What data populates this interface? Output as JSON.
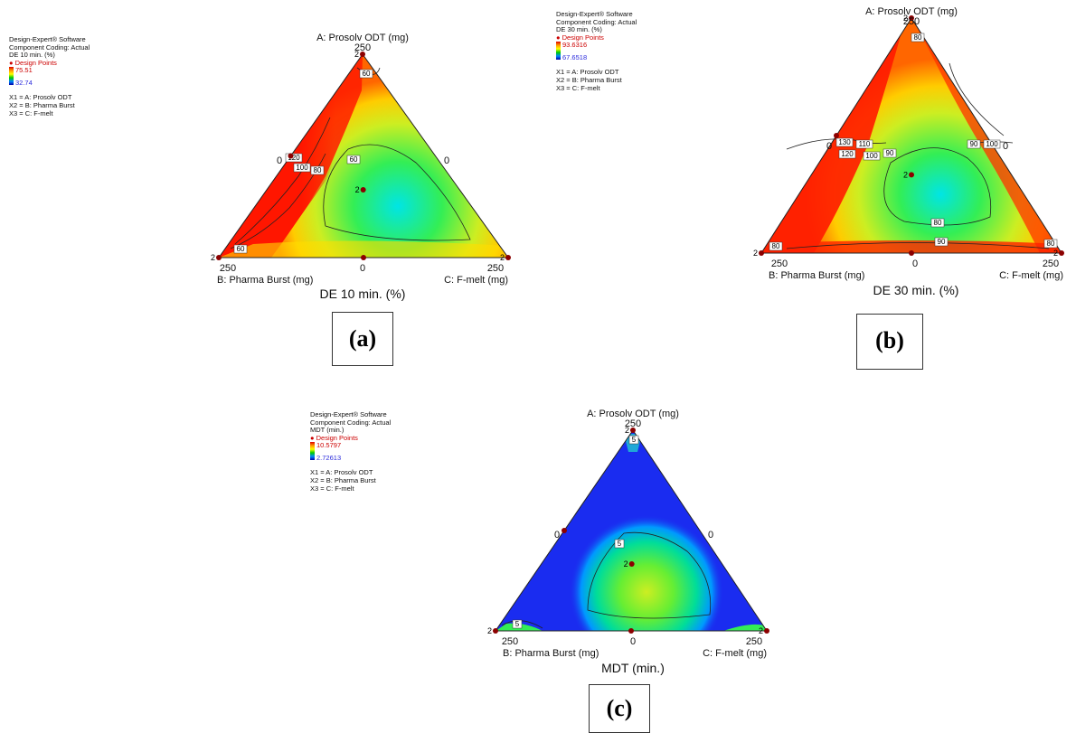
{
  "panels": [
    {
      "id": "a",
      "info": {
        "software": "Design-Expert® Software",
        "coding": "Component Coding: Actual",
        "response": "DE 10 min. (%)",
        "points_label": "Design Points",
        "high": "75.51",
        "low": "32.74",
        "x1": "X1 = A: Prosolv ODT",
        "x2": "X2 = B: Pharma Burst",
        "x3": "X3 = C: F-melt"
      },
      "apex_label": "A: Prosolv ODT (mg)",
      "apex_value": "250",
      "left_label": "B: Pharma Burst (mg)",
      "right_label": "C: F-melt (mg)",
      "left_value": "250",
      "right_value": "250",
      "mid_zero": "0",
      "left_zero": "0",
      "right_zero": "0",
      "title": "DE 10 min. (%)",
      "panel_label": "(a)",
      "contour_labels": [
        "60",
        "120",
        "100",
        "80",
        "60",
        "60"
      ]
    },
    {
      "id": "b",
      "info": {
        "software": "Design-Expert® Software",
        "coding": "Component Coding: Actual",
        "response": "DE 30 min. (%)",
        "points_label": "Design Points",
        "high": "93.6316",
        "low": "67.6518",
        "x1": "X1 = A: Prosolv ODT",
        "x2": "X2 = B: Pharma Burst",
        "x3": "X3 = C: F-melt"
      },
      "apex_label": "A: Prosolv ODT (mg)",
      "apex_value": "250",
      "left_label": "B: Pharma Burst (mg)",
      "right_label": "C: F-melt (mg)",
      "left_value": "250",
      "right_value": "250",
      "mid_zero": "0",
      "left_zero": "0",
      "right_zero": "0",
      "title": "DE 30 min. (%)",
      "panel_label": "(b)",
      "contour_labels": [
        "80",
        "130",
        "110",
        "120",
        "100",
        "90",
        "90",
        "100",
        "80",
        "90",
        "80",
        "80"
      ]
    },
    {
      "id": "c",
      "info": {
        "software": "Design-Expert® Software",
        "coding": "Component Coding: Actual",
        "response": "MDT (min.)",
        "points_label": "Design Points",
        "high": "10.5797",
        "low": "2.72613",
        "x1": "X1 = A: Prosolv ODT",
        "x2": "X2 = B: Pharma Burst",
        "x3": "X3 = C: F-melt"
      },
      "apex_label": "A: Prosolv ODT (mg)",
      "apex_value": "250",
      "left_label": "B: Pharma Burst (mg)",
      "right_label": "C: F-melt (mg)",
      "left_value": "250",
      "right_value": "250",
      "mid_zero": "0",
      "left_zero": "0",
      "right_zero": "0",
      "title": "MDT (min.)",
      "panel_label": "(c)",
      "contour_labels": [
        "5",
        "5",
        "5"
      ]
    }
  ],
  "chart_data": [
    {
      "type": "heatmap",
      "title": "DE 10 min. (%)",
      "components": [
        "A: Prosolv ODT (mg)",
        "B: Pharma Burst (mg)",
        "C: F-melt (mg)"
      ],
      "component_range": [
        0,
        250
      ],
      "response_range": [
        32.74,
        75.51
      ],
      "contour_levels": [
        60,
        80,
        100,
        120
      ],
      "design_points": [
        {
          "A": 250,
          "B": 0,
          "C": 0,
          "replicates": 2
        },
        {
          "A": 0,
          "B": 250,
          "C": 0,
          "replicates": 2
        },
        {
          "A": 0,
          "B": 0,
          "C": 250,
          "replicates": 2
        },
        {
          "A": 125,
          "B": 125,
          "C": 0
        },
        {
          "A": 0,
          "B": 125,
          "C": 125
        },
        {
          "A": 83.3,
          "B": 83.3,
          "C": 83.3,
          "replicates": 2
        }
      ],
      "colors": [
        "#ff0000",
        "#ffff00",
        "#00ff00",
        "#00ffff",
        "#0000ff"
      ]
    },
    {
      "type": "heatmap",
      "title": "DE 30 min. (%)",
      "components": [
        "A: Prosolv ODT (mg)",
        "B: Pharma Burst (mg)",
        "C: F-melt (mg)"
      ],
      "component_range": [
        0,
        250
      ],
      "response_range": [
        67.6518,
        93.6316
      ],
      "contour_levels": [
        80,
        90,
        100,
        110,
        120,
        130
      ],
      "design_points": [
        {
          "A": 250,
          "B": 0,
          "C": 0,
          "replicates": 2
        },
        {
          "A": 0,
          "B": 250,
          "C": 0,
          "replicates": 2
        },
        {
          "A": 0,
          "B": 0,
          "C": 250,
          "replicates": 2
        },
        {
          "A": 125,
          "B": 125,
          "C": 0
        },
        {
          "A": 0,
          "B": 125,
          "C": 125
        },
        {
          "A": 83.3,
          "B": 83.3,
          "C": 83.3,
          "replicates": 2
        }
      ],
      "colors": [
        "#ff0000",
        "#ffff00",
        "#00ff00",
        "#00ffff",
        "#0000ff"
      ]
    },
    {
      "type": "heatmap",
      "title": "MDT (min.)",
      "components": [
        "A: Prosolv ODT (mg)",
        "B: Pharma Burst (mg)",
        "C: F-melt (mg)"
      ],
      "component_range": [
        0,
        250
      ],
      "response_range": [
        2.72613,
        10.5797
      ],
      "contour_levels": [
        5
      ],
      "design_points": [
        {
          "A": 250,
          "B": 0,
          "C": 0,
          "replicates": 2
        },
        {
          "A": 0,
          "B": 250,
          "C": 0,
          "replicates": 2
        },
        {
          "A": 0,
          "B": 0,
          "C": 250,
          "replicates": 2
        },
        {
          "A": 125,
          "B": 125,
          "C": 0
        },
        {
          "A": 0,
          "B": 125,
          "C": 125
        },
        {
          "A": 83.3,
          "B": 83.3,
          "C": 83.3,
          "replicates": 2
        }
      ],
      "colors": [
        "#ff0000",
        "#ffff00",
        "#00ff00",
        "#00ffff",
        "#0000ff"
      ]
    }
  ]
}
